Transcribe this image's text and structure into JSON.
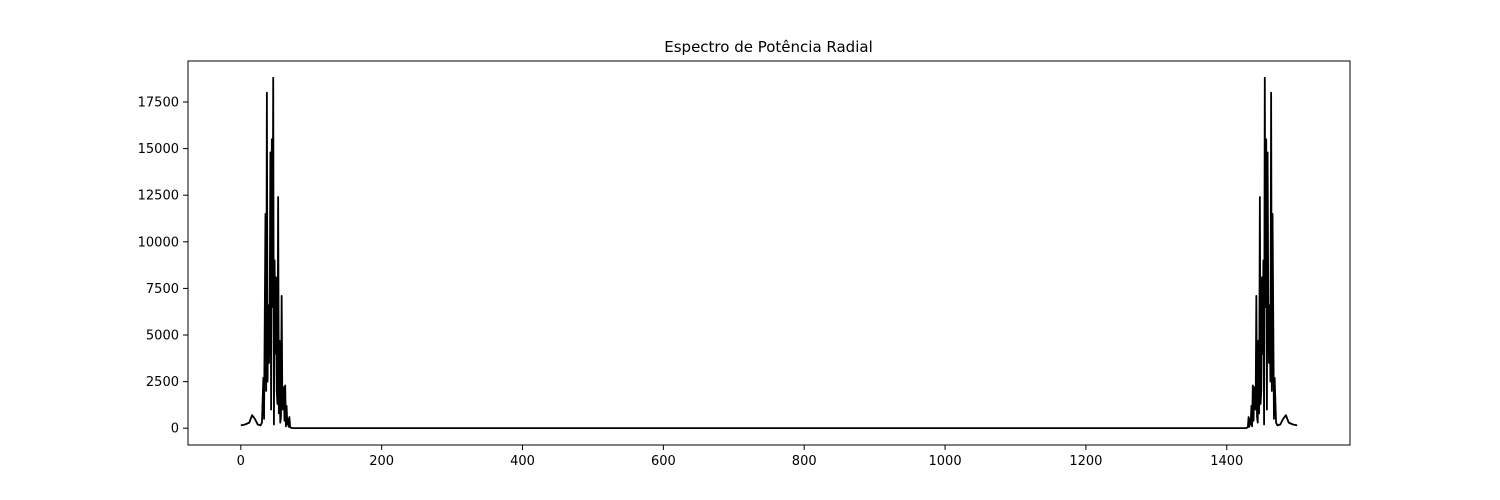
{
  "chart_data": {
    "type": "line",
    "title": "Espectro de Potência Radial",
    "xlabel": "",
    "ylabel": "",
    "xlim": [
      -75,
      1575
    ],
    "ylim": [
      -900,
      19700
    ],
    "x_ticks": [
      0,
      200,
      400,
      600,
      800,
      1000,
      1200,
      1400
    ],
    "y_ticks": [
      0,
      2500,
      5000,
      7500,
      10000,
      12500,
      15000,
      17500
    ],
    "x_tick_labels": [
      "0",
      "200",
      "400",
      "600",
      "800",
      "1000",
      "1200",
      "1400"
    ],
    "y_tick_labels": [
      "0",
      "2500",
      "5000",
      "7500",
      "10000",
      "12500",
      "15000",
      "17500"
    ],
    "grid": false,
    "series": [
      {
        "color": "#000000",
        "symmetric_total": 1500,
        "x": [
          0,
          6,
          12,
          16,
          20,
          24,
          28,
          30,
          32,
          33,
          35,
          36,
          37,
          38,
          39,
          40,
          41,
          42,
          43,
          44,
          45,
          46,
          47,
          48,
          49,
          50,
          51,
          52,
          53,
          54,
          55,
          56,
          57,
          58,
          59,
          60,
          61,
          62,
          63,
          64,
          65,
          66,
          67,
          68,
          69,
          70,
          71,
          72,
          73,
          74,
          75,
          76,
          77,
          78,
          79,
          80,
          81,
          82,
          83,
          84,
          86,
          90,
          95,
          100,
          110,
          120,
          150,
          200,
          400,
          600,
          750
        ],
        "values": [
          150,
          200,
          300,
          700,
          500,
          200,
          150,
          300,
          2700,
          500,
          11500,
          2000,
          18000,
          2500,
          6600,
          3500,
          6000,
          14800,
          1000,
          15500,
          6500,
          18800,
          200,
          9000,
          4000,
          8100,
          2000,
          1300,
          12400,
          800,
          4700,
          300,
          600,
          7100,
          1000,
          2000,
          2200,
          400,
          2300,
          100,
          1200,
          200,
          500,
          80,
          600,
          50,
          30,
          20,
          10,
          5,
          5,
          5,
          5,
          5,
          5,
          5,
          5,
          5,
          5,
          5,
          5,
          5,
          5,
          5,
          5,
          5,
          5,
          5,
          5,
          5,
          5
        ]
      }
    ]
  }
}
